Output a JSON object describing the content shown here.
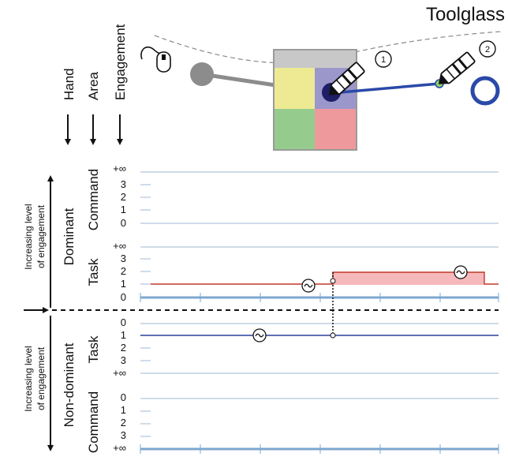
{
  "title": "Toolglass",
  "headers": {
    "hand": "Hand",
    "area": "Area",
    "engagement": "Engagement"
  },
  "side_labels": {
    "top": [
      "Increasing level",
      "of engagement"
    ],
    "bottom": [
      "Increasing level",
      "of engagement"
    ]
  },
  "hands": {
    "dominant": "Dominant",
    "nondominant": "Non-dominant"
  },
  "areas": {
    "command": "Command",
    "task": "Task"
  },
  "tick_labels": {
    "dominant_command": [
      "+∞",
      "3",
      "2",
      "1",
      "0"
    ],
    "dominant_task": [
      "+∞",
      "3",
      "2",
      "1",
      "0"
    ],
    "nondominant_task": [
      "0",
      "1",
      "2",
      "3",
      "+∞"
    ],
    "nondominant_command": [
      "0",
      "1",
      "2",
      "3",
      "+∞"
    ]
  },
  "markers": {
    "pen1": "1",
    "pen2": "2"
  },
  "colors": {
    "dominant_line": "#c0392b",
    "dominant_fill": "#f6b9bb",
    "nondominant_line": "#2a3e9c",
    "track": "#7da7d0",
    "grid": "#9fbad6",
    "palette_frame": "#9a9a9a",
    "palette_top": "#c8c8c8",
    "cell_yellow": "#eeea94",
    "cell_blue": "#9b97cb",
    "cell_green": "#95cc8d",
    "cell_red": "#ee9a9c",
    "cursor_dark": "#1e1f66",
    "ring": "#2a49a8",
    "puck": "#8c8c8c"
  },
  "icons": [
    "mouse-icon",
    "pen-icon",
    "tilde-circle-icon",
    "arrow-down-icon",
    "arrow-right-icon"
  ]
}
